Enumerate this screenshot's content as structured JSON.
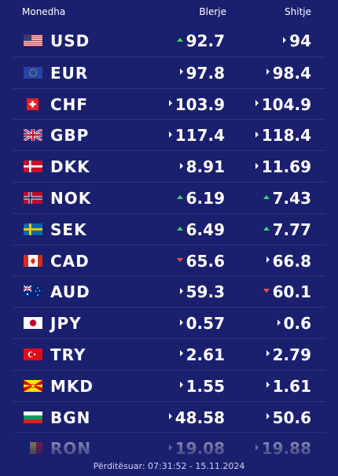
{
  "header": {
    "currency": "Monedha",
    "buy": "Blerje",
    "sell": "Shitje"
  },
  "rows": [
    {
      "code": "USD",
      "buy": "92.7",
      "buy_trend": "up",
      "sell": "94",
      "sell_trend": "same",
      "flag": "us-flag-icon"
    },
    {
      "code": "EUR",
      "buy": "97.8",
      "buy_trend": "same",
      "sell": "98.4",
      "sell_trend": "same",
      "flag": "eu-flag-icon"
    },
    {
      "code": "CHF",
      "buy": "103.9",
      "buy_trend": "same",
      "sell": "104.9",
      "sell_trend": "same",
      "flag": "ch-flag-icon"
    },
    {
      "code": "GBP",
      "buy": "117.4",
      "buy_trend": "same",
      "sell": "118.4",
      "sell_trend": "same",
      "flag": "gb-flag-icon"
    },
    {
      "code": "DKK",
      "buy": "8.91",
      "buy_trend": "same",
      "sell": "11.69",
      "sell_trend": "same",
      "flag": "dk-flag-icon"
    },
    {
      "code": "NOK",
      "buy": "6.19",
      "buy_trend": "up",
      "sell": "7.43",
      "sell_trend": "up",
      "flag": "no-flag-icon"
    },
    {
      "code": "SEK",
      "buy": "6.49",
      "buy_trend": "up",
      "sell": "7.77",
      "sell_trend": "up",
      "flag": "se-flag-icon"
    },
    {
      "code": "CAD",
      "buy": "65.6",
      "buy_trend": "down",
      "sell": "66.8",
      "sell_trend": "same",
      "flag": "ca-flag-icon"
    },
    {
      "code": "AUD",
      "buy": "59.3",
      "buy_trend": "same",
      "sell": "60.1",
      "sell_trend": "down",
      "flag": "au-flag-icon"
    },
    {
      "code": "JPY",
      "buy": "0.57",
      "buy_trend": "same",
      "sell": "0.6",
      "sell_trend": "same",
      "flag": "jp-flag-icon"
    },
    {
      "code": "TRY",
      "buy": "2.61",
      "buy_trend": "same",
      "sell": "2.79",
      "sell_trend": "same",
      "flag": "tr-flag-icon"
    },
    {
      "code": "MKD",
      "buy": "1.55",
      "buy_trend": "same",
      "sell": "1.61",
      "sell_trend": "same",
      "flag": "mk-flag-icon"
    },
    {
      "code": "BGN",
      "buy": "48.58",
      "buy_trend": "same",
      "sell": "50.6",
      "sell_trend": "same",
      "flag": "bg-flag-icon"
    },
    {
      "code": "RON",
      "buy": "19.08",
      "buy_trend": "same",
      "sell": "19.88",
      "sell_trend": "same",
      "flag": "ro-flag-icon"
    }
  ],
  "footer": {
    "updated": "Përditësuar: 07:31:52 - 15.11.2024"
  }
}
